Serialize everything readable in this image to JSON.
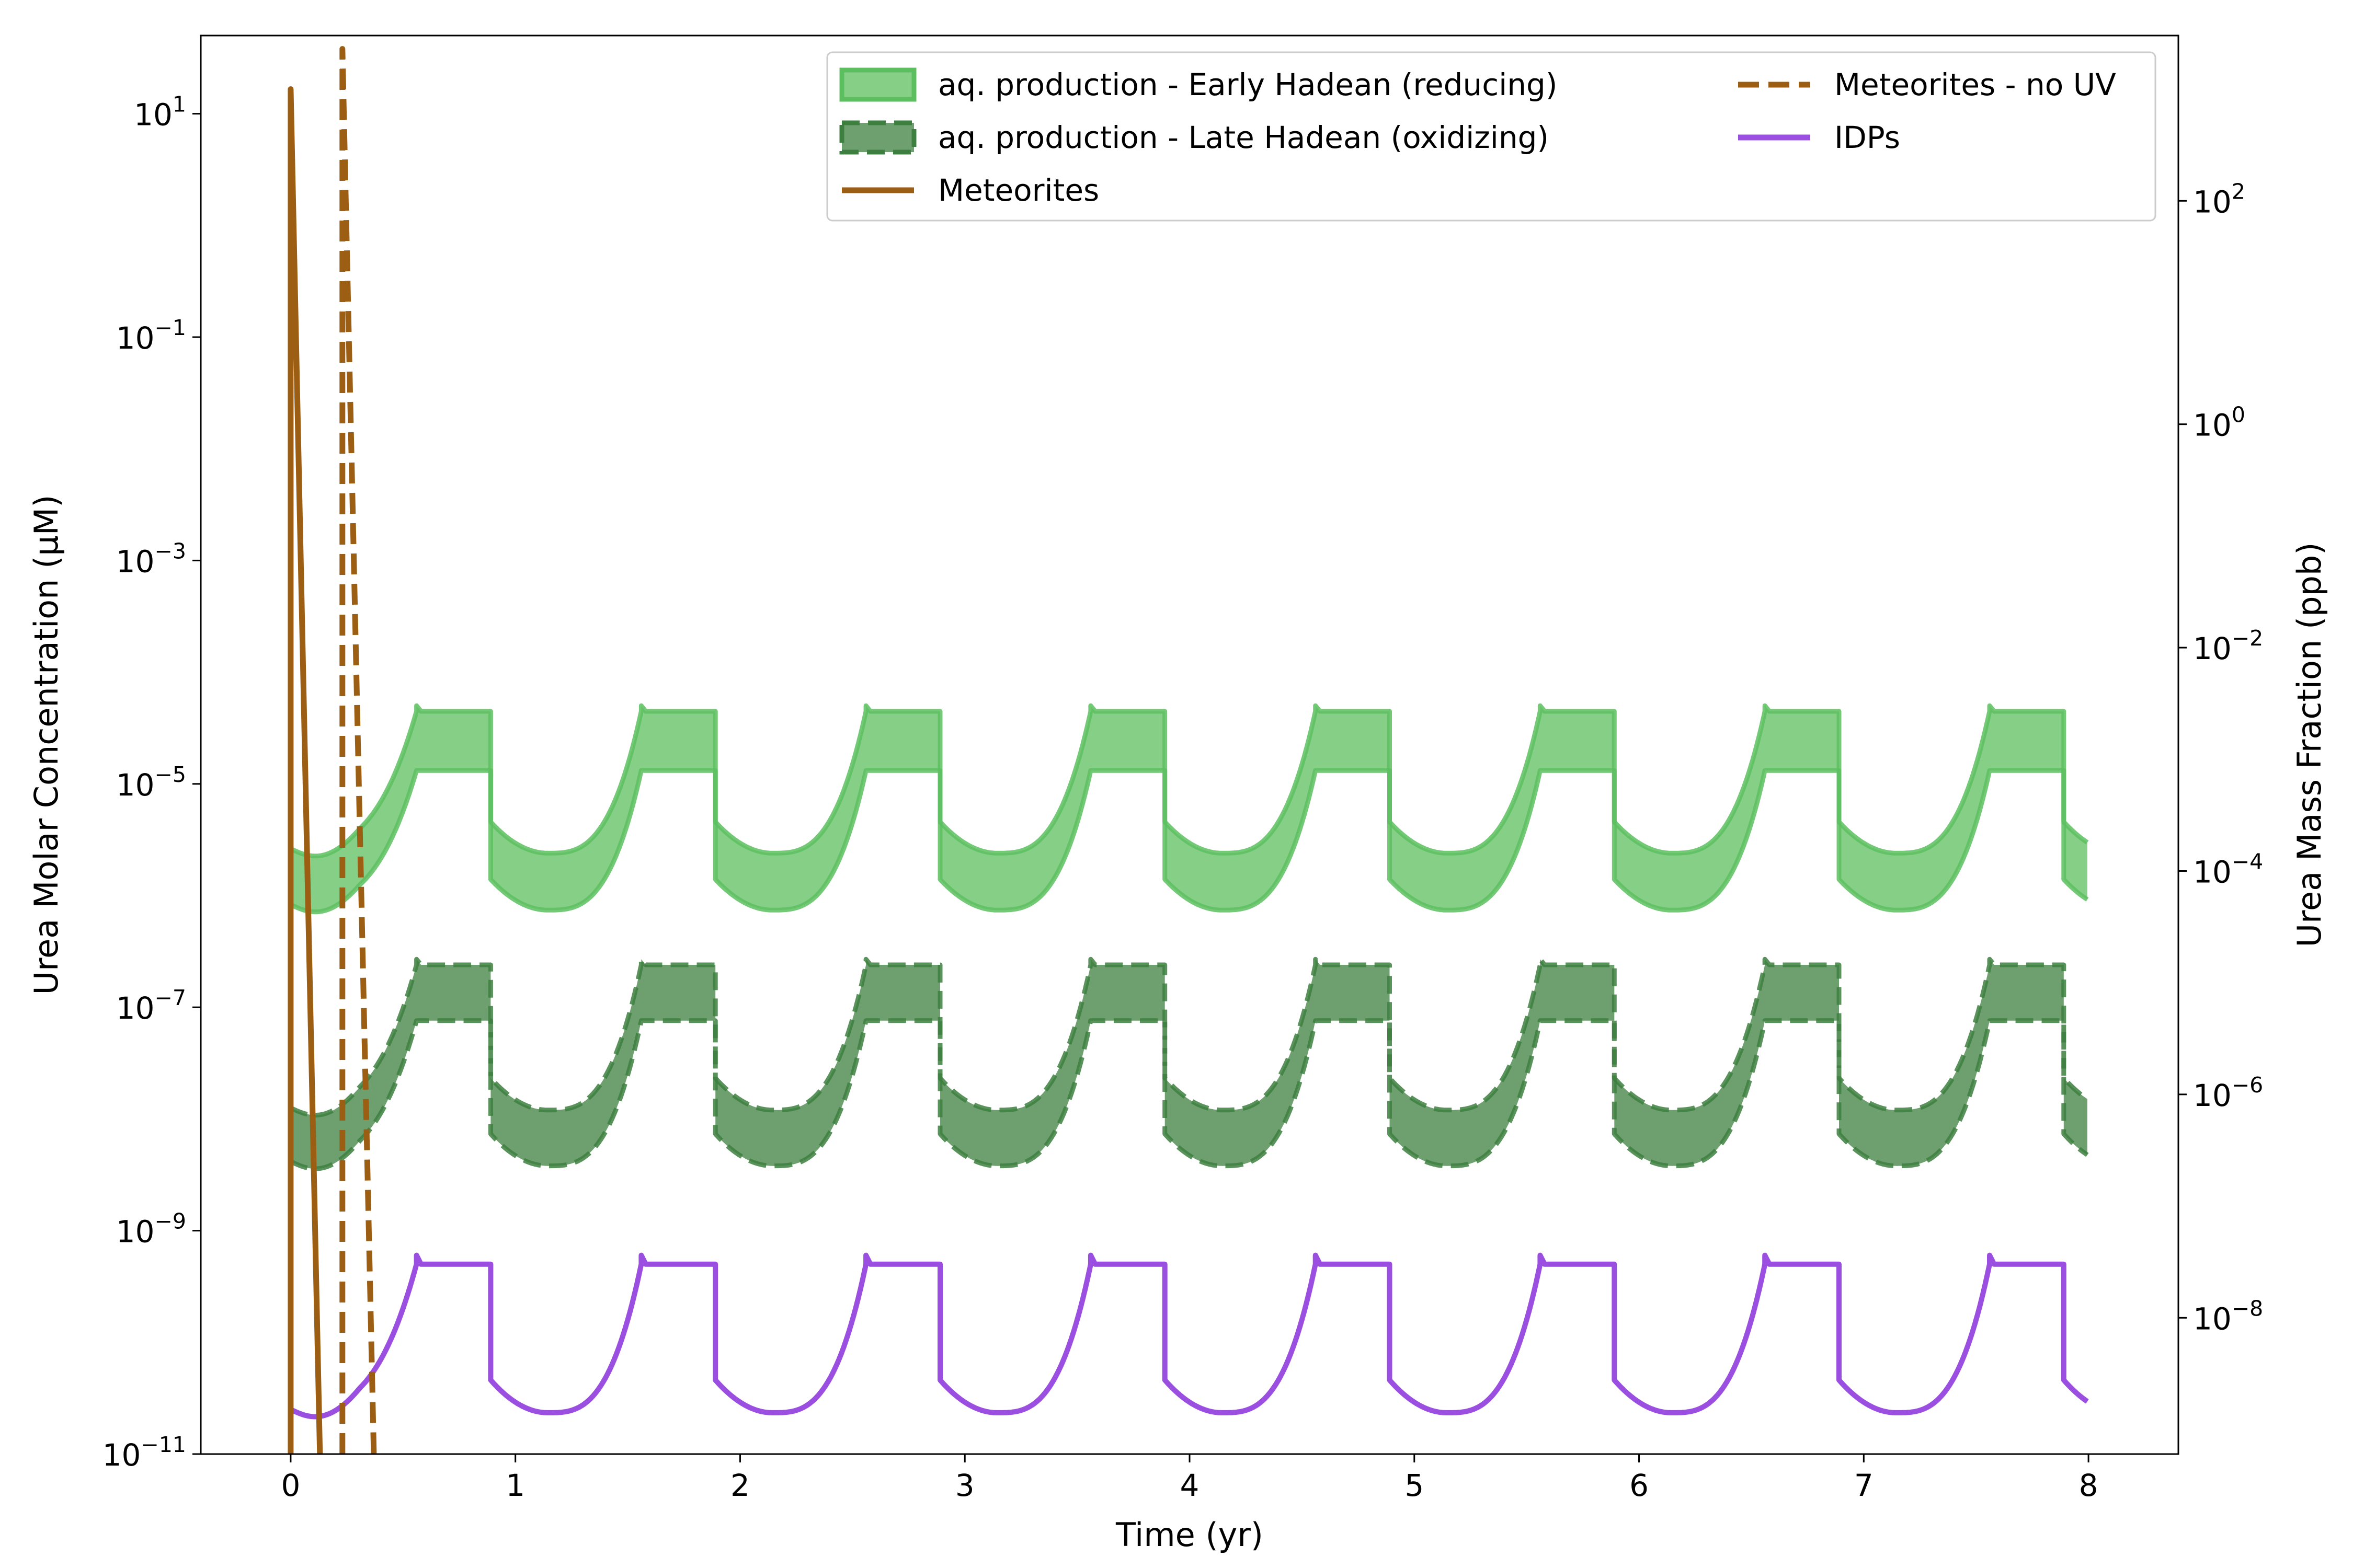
{
  "chart_data": {
    "type": "line",
    "xlabel": "Time (yr)",
    "ylabel_left": "Urea Molar Concentration (μM)",
    "ylabel_right": "Urea Mass Fraction (ppb)",
    "x_range": [
      -0.4,
      8.4
    ],
    "y_left_log_range": [
      -11,
      1.7
    ],
    "y_right_log_range": [
      -9.22,
      3.48
    ],
    "y_scale": "log",
    "x_ticks": [
      "0",
      "1",
      "2",
      "3",
      "4",
      "5",
      "6",
      "7",
      "8"
    ],
    "y_left_ticks": [
      {
        "base": "10",
        "exp": "1"
      },
      {
        "base": "10",
        "exp": "−1"
      },
      {
        "base": "10",
        "exp": "−3"
      },
      {
        "base": "10",
        "exp": "−5"
      },
      {
        "base": "10",
        "exp": "−7"
      },
      {
        "base": "10",
        "exp": "−9"
      },
      {
        "base": "10",
        "exp": "−11"
      }
    ],
    "y_right_ticks": [
      {
        "base": "10",
        "exp": "2"
      },
      {
        "base": "10",
        "exp": "0"
      },
      {
        "base": "10",
        "exp": "−2"
      },
      {
        "base": "10",
        "exp": "−4"
      },
      {
        "base": "10",
        "exp": "−6"
      },
      {
        "base": "10",
        "exp": "−8"
      }
    ],
    "legend_position": "top-right",
    "grid": false,
    "cycle": {
      "period_yr": 1.0,
      "rise_start_phase": 0.0,
      "plateau_start_phase": 0.56,
      "plateau_end_phase": 0.89,
      "end_yr": 8.0
    },
    "series": [
      {
        "name": "aq. production - Early Hadean (reducing)",
        "kind": "band",
        "color": "#5cbf5f",
        "line_style": "solid",
        "upper_log_plateau": -4.35,
        "upper_log_trough": -5.62,
        "upper_log_spike": -4.3,
        "lower_log_plateau": -4.88,
        "lower_log_trough": -6.13,
        "upper_log_start": -5.58,
        "lower_log_start": -6.08
      },
      {
        "name": "aq. production - Late Hadean (oxidizing)",
        "kind": "band",
        "color": "#3d7f3f",
        "line_style": "dashed",
        "upper_log_plateau": -6.62,
        "upper_log_trough": -7.92,
        "upper_log_spike": -6.57,
        "lower_log_plateau": -7.12,
        "lower_log_trough": -8.42,
        "upper_log_start": -7.9,
        "lower_log_start": -8.38
      },
      {
        "name": "Meteorites",
        "kind": "line",
        "color": "#9c5e12",
        "line_style": "solid",
        "x": [
          0.0,
          0.0,
          0.13
        ],
        "log_y": [
          -11,
          1.22,
          -11
        ]
      },
      {
        "name": "Meteorites - no UV",
        "kind": "line",
        "color": "#9c5e12",
        "line_style": "dashed",
        "x": [
          0.23,
          0.23,
          0.37
        ],
        "log_y": [
          -11,
          1.58,
          -11
        ]
      },
      {
        "name": "IDPs",
        "kind": "periodic_line",
        "color": "#9b4fe0",
        "line_style": "solid",
        "log_plateau": -9.3,
        "log_trough": -10.63,
        "log_spike": -9.22,
        "log_start": -10.6,
        "log_min": -11
      }
    ]
  }
}
